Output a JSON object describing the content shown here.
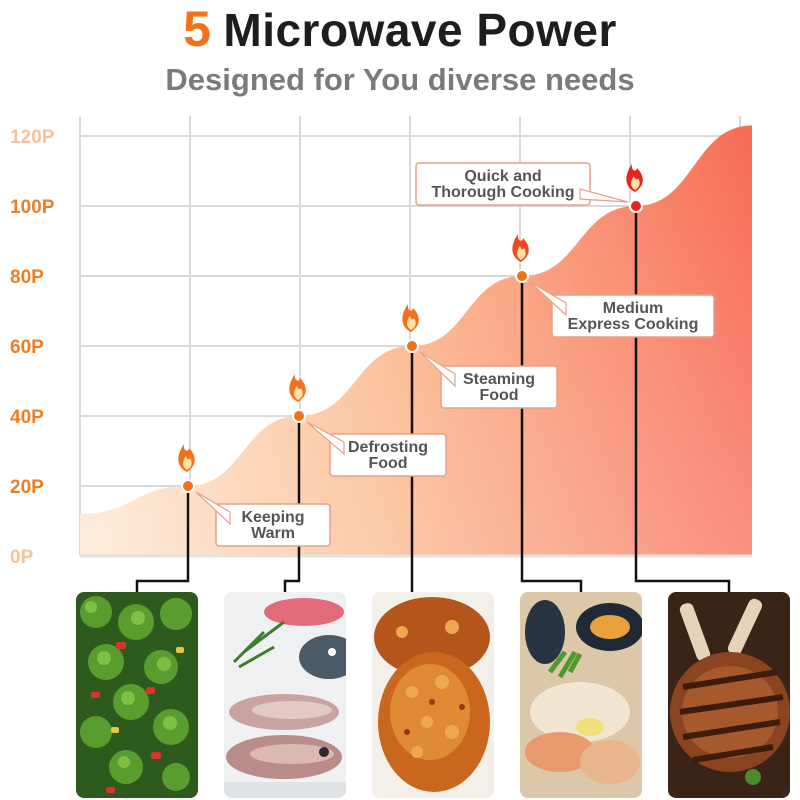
{
  "header": {
    "title_number": "5",
    "title_text": "Microwave Power",
    "subtitle": "Designed for You diverse needs"
  },
  "colors": {
    "accent": "#f2711c",
    "area_light": "#fbe4cf",
    "area_dark": "#f76b55",
    "grid": "#d9d9d9",
    "tick_label": "#ef7d24",
    "callout_text": "#555555"
  },
  "chart_data": {
    "type": "area",
    "yticks": [
      "0P",
      "20P",
      "40P",
      "60P",
      "80P",
      "100P",
      "120P"
    ],
    "ylim": [
      0,
      120
    ],
    "grid": true,
    "power_levels": [
      {
        "value": 20,
        "label_lines": [
          "Keeping",
          "Warm"
        ]
      },
      {
        "value": 40,
        "label_lines": [
          "Defrosting",
          "Food"
        ]
      },
      {
        "value": 60,
        "label_lines": [
          "Steaming",
          "Food"
        ]
      },
      {
        "value": 80,
        "label_lines": [
          "Medium",
          "Express Cooking"
        ]
      },
      {
        "value": 100,
        "label_lines": [
          "Quick and",
          "Thorough Cooking"
        ]
      }
    ],
    "markers": "flame-icon"
  },
  "photos": [
    {
      "name": "broccoli-dish-image",
      "icon": "vegetables"
    },
    {
      "name": "raw-fish-image",
      "icon": "fish"
    },
    {
      "name": "fried-chicken-image",
      "icon": "fried-chicken"
    },
    {
      "name": "seafood-dish-image",
      "icon": "seafood"
    },
    {
      "name": "grilled-steak-image",
      "icon": "steak"
    }
  ]
}
